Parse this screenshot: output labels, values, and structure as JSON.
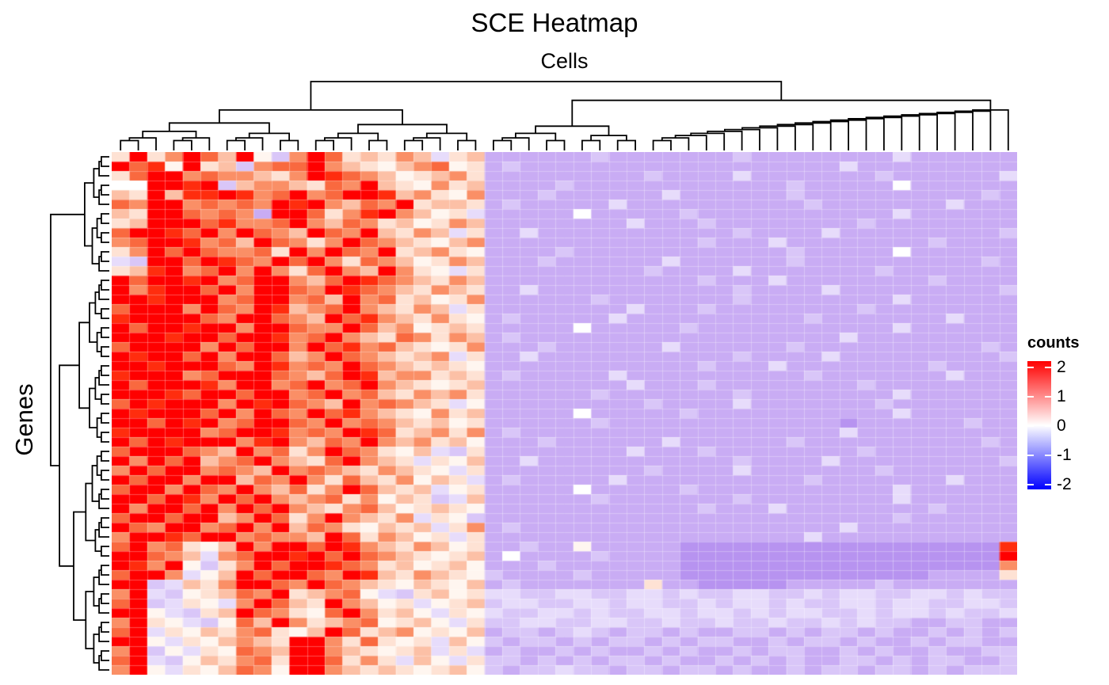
{
  "title": "SCE Heatmap",
  "column_axis_label": "Cells",
  "row_axis_label": "Genes",
  "legend": {
    "title": "counts",
    "tick_labels": [
      "2",
      "1",
      "0",
      "-1",
      "-2"
    ],
    "tick_values": [
      2,
      1,
      0,
      -1,
      -2
    ],
    "gradient_top": "#FF0000",
    "gradient_mid": "#FFFFFF",
    "gradient_bottom": "#0000FF"
  },
  "chart_data": {
    "type": "heatmap",
    "title": "SCE Heatmap",
    "xlabel": "Cells",
    "ylabel": "Genes",
    "n_rows": 55,
    "n_cols": 51,
    "zlim": [
      -2,
      2
    ],
    "colormap": [
      "#0000FF",
      "#FFFFFF",
      "#FF0000"
    ],
    "clustered": true,
    "palette": {
      "R": {
        "v": 2.0,
        "c": "#FF0000"
      },
      "q": {
        "v": 1.6,
        "c": "#FF2D0E"
      },
      "o": {
        "v": 1.1,
        "c": "#F9693F"
      },
      "s": {
        "v": 0.8,
        "c": "#FA8F66"
      },
      "p": {
        "v": 0.5,
        "c": "#FCC0A6"
      },
      "e": {
        "v": 0.25,
        "c": "#FEE2D4"
      },
      "w": {
        "v": 0.1,
        "c": "#FFF6F0"
      },
      "W": {
        "v": 0.0,
        "c": "#FFFFFF"
      },
      "u": {
        "v": -0.12,
        "c": "#F4EFFD"
      },
      "v": {
        "v": -0.28,
        "c": "#E7DCFB"
      },
      "l": {
        "v": -0.45,
        "c": "#D9C6F8"
      },
      "m": {
        "v": -0.62,
        "c": "#C9ACF4"
      },
      "d": {
        "v": -0.8,
        "c": "#B793F0"
      },
      "D": {
        "v": -1.0,
        "c": "#A87EEA"
      }
    },
    "rows": [
      "eResRopRwlsRoepespvepmmmmmmlmmmmmmmlmmmmmmmmvmmmmmm",
      "RoqwReplsooRspewpsowemlmmmmmmmmmmmmmmmmmmvmmmmmmmmm",
      "eoRRsosspesRqospwepsemmmmmmmmmlmmmmvmmmmmmmlmmmmmmv",
      "WWRRqRlpsspeosRpewsepmmmmlmmmmmmmmmmmmlmmmmmWmmmmmm",
      "peRpqqRqsoRsoRRqpsewsmmmlmmmmmmvmmmmmmlmmmmmmmmmmlm",
      "osRRsososRqRsposReppemlmmmmmvmmmmmmmmmmlmmmmmmmvmmm",
      "peRRososPRRoesqRspwevmmmmmWmmmmmlmmmmmmmmmmmvmmmmmm",
      "epRRRoqssoRsposepwespmmmmmmmmvmmmlmmmmmmmmlmmmmmmmm",
      "oRRqoRsRospRosRpespvemmvmmmmmmmmmmmlmmmmvmmmmmmmmml",
      "soRRqsopRosesRospewpsmmmmmmmmmmmmlmmmvmmmmmmmmlmmmm",
      "esRoRossoeRsRosRepsewmmmmlmmmmmmmmmmmmlmmmmmWmmmmmm",
      "vlRRoRqosRoRseospwespmmmlmmmmmmvmmmmmmlmmmmmmmmmmlm",
      "epqRsoRsRseoRspRsewvemmmmmmmmmlmmmmvmmmmmmmlmmmmmmm",
      "RoRRqRsoRRspoRqospespmmmmmmmmmmmmlmmmvmmmmmmmmlmmmm",
      "RsqRRoRsRRosRqospespemmvmmmmmmmmmmmlmmmmvmmmmmmmmml",
      "RRqRRRsoRRsopRsoepwesmmmmmmlmmmmmmmlmmmmmmmmvmmmmmm",
      "oRRRsRosRqpsoRspespvemmmmmmmmvmmmlmmmmmmmmlmmmmmmmm",
      "qRRRRosRRospRoqspesewmlmmmmmvmmmmmmmmmmlmmmmmmmvmmm",
      "RoRRqRRsRRossRopswepemmmmmWmmmmmlmmmmmmmmmmmvmmmmmm",
      "RRRqRRoRRqsoRspeosespmlmmmmmmmmmmmmmmmmmmvmmmmmmmmm",
      "oRRRRsRoRRsRoqsopewesmmmlmmmmmmvmmmmmmlmmmmmmmmmmlm",
      "RqRRoRsRRopsRospepsvemmvmmmmmmmmmmmlmmmmvmmmmmmmmml",
      "RRqRRRosRqsosRospepewmmmmmmmmmmmmlmmmvmmmmmmmmlmmmm",
      "qRRRsoRRRospoRqpssepemlmmmmmvmmmmmmmmmmlmmmmmmmvmmm",
      "RoRRRqsRRsoRsoRspewepmmmmmmmmvmmmlmmmmmmmmlmmmmmmmm",
      "RRRqoRRoRRsoRsopespsemmmmmmlmmmmmmmlmmmmmmmmvmmmmmm",
      "oRqRRRsRqRospRsospevwmmmmmmmmmlmmmmvmmmmmmmlmmmmmmm",
      "RqRRRoRsRosRoqspewsepmmmmmWmmmmmlmmmmmmmmmmmvmmmmmm",
      "RRoRqRsoRRosRsospepwemmmmmmlmmmmmmmmmmmmmdmmmmmmlmm",
      "qRRRRsoRRqsosRqoepsesmlmmmmmmmmmmmmmmmmmmvmmmmmmmmm",
      "RoRqRRRsqRsposRspsepwmmmlmmmmmmvmmmmmmlmmmmmmmmmmlm",
      "oRRRospRsoesRosewpvlemmmmmmmmvmmmlmmmmmmmmlmmmmmmmm",
      "RsRoRpsoRspeoRspevewpmmvmmmmmmmmmmmlmmmmvmmmmmmmmml",
      "sRoRRsospRsospespewvemmmmmmmmmlmmmmvmmmmmmmlmmmmmmm",
      "RoRRsRRposRseopeswpevmlmmmmmvmmmmmmmmmmlmmmmmmmvmmm",
      "oRRsRosRspoesRopepvwemmmmmWmmmmmlmmmmmmmmmmmvmmmmmm",
      "RRoRqsRoRspsoeswpelvpmmmmmmlmmmmmmmlmmmmmmmmvmmmmmm",
      "RsRRoRsRoRspesopwepewmmmmmmmmmmmmlmmmvmmmmmmmmlmmmm",
      "oRRoRRpsRoesRspesvewlmmmmmmmmmmmmmmmmmmmmmmmlmmmmmm",
      "RosRRsoRsRposewpepvesmlmmmmmmmmmmmmmmmmmmvmmmmmmmmm",
      "sRRqoRRsosspRoespwevemmmmmmmmmmmmmmmmmmvmmmmmmmmmmm",
      "oRsoewpRsRRoRqspespwemmlmmwmmmmmddddddddddddddddddq",
      "RRospvsoRRqRoRospewepmWmmmmlmmmmddddddddddddddddddR",
      "RqsRwlesRoRRqosepwepwmmmlmmmmmmmdddddddddddddddddds",
      "oRRsvwpRoRRosRqpespewlmmmmlmmmmmddddddddddddddmmmme",
      "RRlvpesRRosRospewpewpmlmmmmmmmemmdddddmmmmmlmmmmmmm",
      "sRvlweposRepsowvlepwevvllvvllvvlvllvvllvlvvllvvlvll",
      "oRlvewvsRopeRspwevweplvvllvvlvvllvlvvlvllvvlvvllvvl",
      "RRwvlepRosewoRsepwvewvllvvlvllvvlvvlvlvvllvlvvlvllv",
      "sRewvlwopRsepsowepwvellvvllvvllvllvllvllvlvllmmllmm",
      "oRvewpesoewpRoepswewpmllmlvlmllmlmmllmlmllmlmmlmlml",
      "RRwvewpspeRRseoewevpwlmllmlmllmlmllmmlmllmlmmlmllmm",
      "sRlwvewospRRspewepvevmlmmlmlmmlmlmmlmllmmlmlmmlmmll",
      "oRvlwpesoeRRoesevpwvellmlmlmllmlmmlmlmlmmllmlmllmml",
      "sRwvewposwRRspepewepwlmllvllmllmllmlmmlmllmllmlmlll"
    ],
    "col_dendrogram": {
      "children": [
        {
          "bal": 21
        },
        {
          "children": [
            {
              "bal": 9
            },
            {
              "chain": 21
            }
          ]
        }
      ]
    },
    "row_dendrogram": {
      "children": [
        {
          "children": [
            {
              "bal": 6
            },
            {
              "bal": 7
            }
          ]
        },
        {
          "children": [
            {
              "children": [
                {
                  "bal": 9
                },
                {
                  "bal": 9
                }
              ]
            },
            {
              "children": [
                {
                  "children": [
                    {
                      "bal": 7
                    },
                    {
                      "bal": 5
                    }
                  ]
                },
                {
                  "children": [
                    {
                      "bal": 6
                    },
                    {
                      "bal": 6
                    }
                  ]
                }
              ]
            }
          ]
        }
      ]
    }
  }
}
